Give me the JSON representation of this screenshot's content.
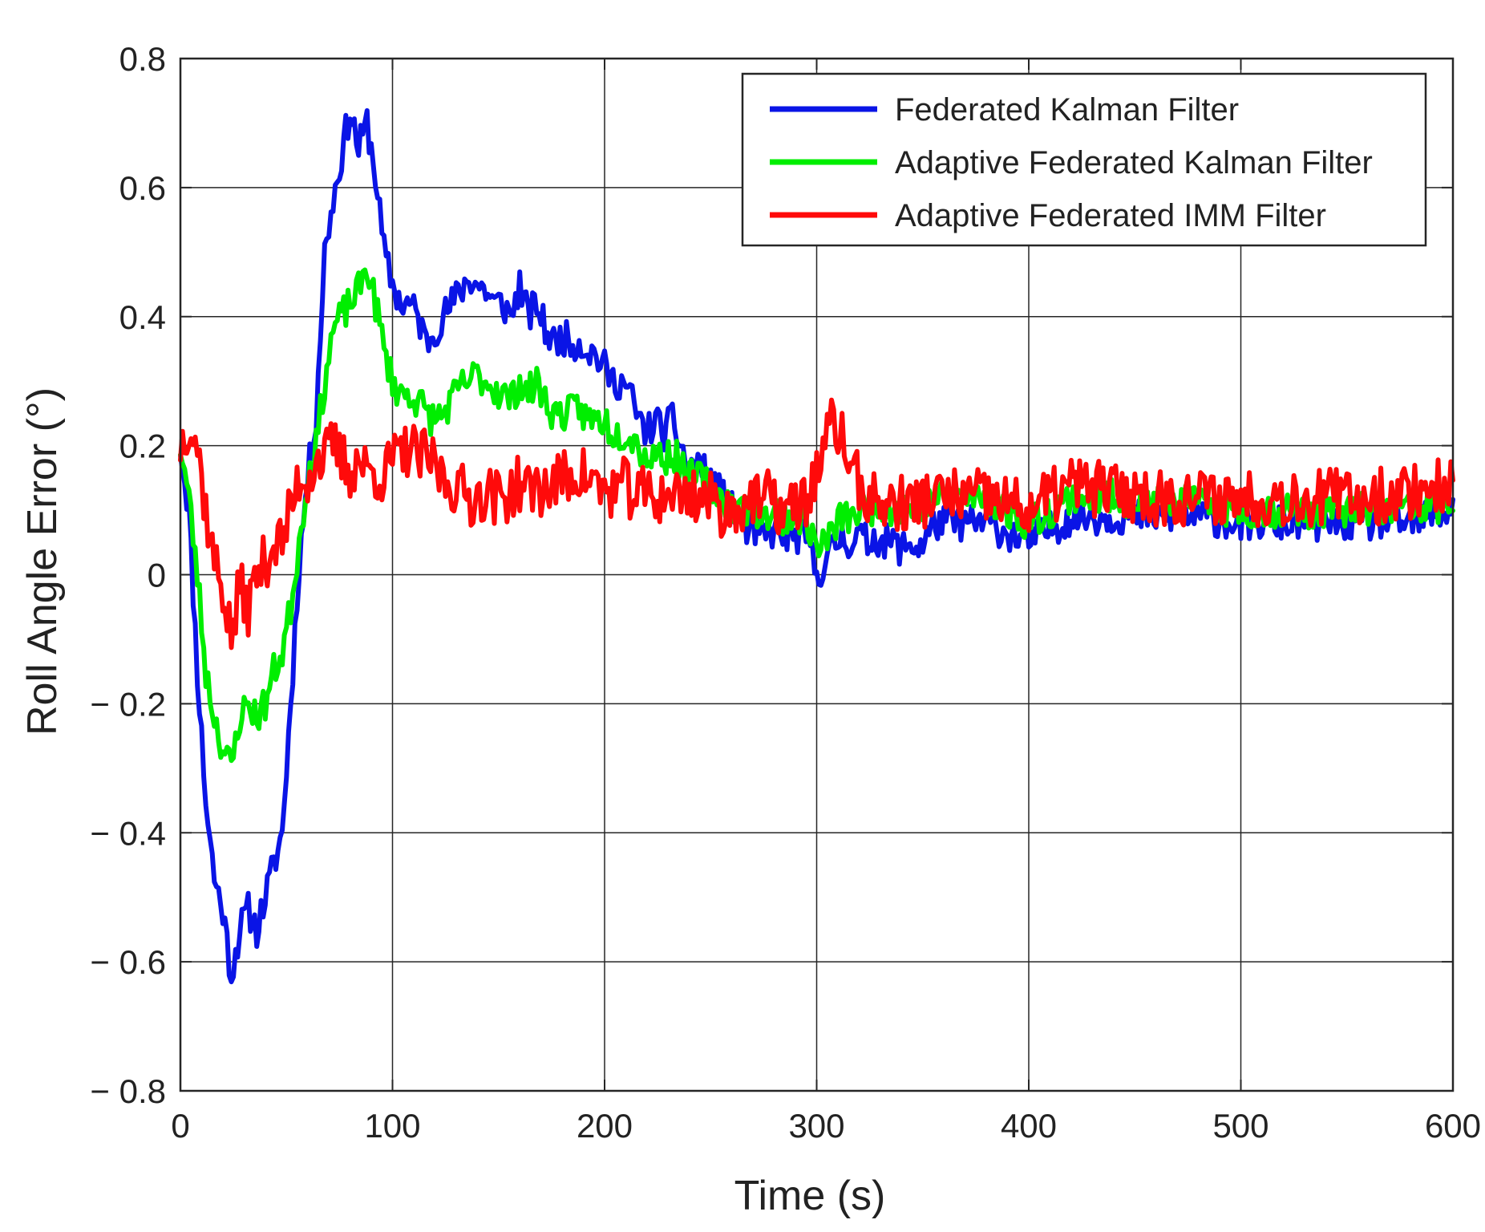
{
  "chart_data": {
    "type": "line",
    "title": "",
    "xlabel": "Time (s)",
    "ylabel": "Roll Angle Error (°)",
    "xlim": [
      0,
      600
    ],
    "ylim": [
      -0.8,
      0.8
    ],
    "xticks": [
      0,
      100,
      200,
      300,
      400,
      500,
      600
    ],
    "xtick_labels": [
      "0",
      "100",
      "200",
      "300",
      "400",
      "500",
      "600"
    ],
    "yticks": [
      -0.8,
      -0.6,
      -0.4,
      -0.2,
      0,
      0.2,
      0.4,
      0.6,
      0.8
    ],
    "ytick_labels": [
      "− 0.8",
      "− 0.6",
      "− 0.4",
      "− 0.2",
      "0",
      "0.2",
      "0.4",
      "0.6",
      "0.8"
    ],
    "grid": true,
    "legend_position": "top-right",
    "series": [
      {
        "name": "Federated Kalman Filter",
        "color": "#0a14e6",
        "anchors": [
          [
            0,
            0.2
          ],
          [
            4,
            0.1
          ],
          [
            8,
            -0.15
          ],
          [
            12,
            -0.35
          ],
          [
            16,
            -0.47
          ],
          [
            20,
            -0.52
          ],
          [
            24,
            -0.62
          ],
          [
            28,
            -0.55
          ],
          [
            32,
            -0.52
          ],
          [
            36,
            -0.55
          ],
          [
            40,
            -0.5
          ],
          [
            44,
            -0.45
          ],
          [
            48,
            -0.4
          ],
          [
            52,
            -0.2
          ],
          [
            56,
            0.02
          ],
          [
            60,
            0.15
          ],
          [
            64,
            0.25
          ],
          [
            68,
            0.5
          ],
          [
            72,
            0.58
          ],
          [
            76,
            0.65
          ],
          [
            80,
            0.72
          ],
          [
            84,
            0.66
          ],
          [
            88,
            0.7
          ],
          [
            92,
            0.62
          ],
          [
            96,
            0.5
          ],
          [
            100,
            0.45
          ],
          [
            104,
            0.42
          ],
          [
            108,
            0.42
          ],
          [
            112,
            0.4
          ],
          [
            116,
            0.36
          ],
          [
            120,
            0.38
          ],
          [
            124,
            0.4
          ],
          [
            128,
            0.42
          ],
          [
            132,
            0.44
          ],
          [
            136,
            0.46
          ],
          [
            140,
            0.45
          ],
          [
            144,
            0.44
          ],
          [
            148,
            0.42
          ],
          [
            152,
            0.42
          ],
          [
            156,
            0.4
          ],
          [
            160,
            0.45
          ],
          [
            164,
            0.4
          ],
          [
            168,
            0.42
          ],
          [
            172,
            0.38
          ],
          [
            176,
            0.36
          ],
          [
            180,
            0.37
          ],
          [
            184,
            0.36
          ],
          [
            188,
            0.36
          ],
          [
            192,
            0.35
          ],
          [
            196,
            0.34
          ],
          [
            200,
            0.32
          ],
          [
            204,
            0.3
          ],
          [
            208,
            0.3
          ],
          [
            212,
            0.28
          ],
          [
            216,
            0.24
          ],
          [
            220,
            0.22
          ],
          [
            224,
            0.24
          ],
          [
            228,
            0.22
          ],
          [
            232,
            0.24
          ],
          [
            236,
            0.2
          ],
          [
            240,
            0.16
          ],
          [
            244,
            0.18
          ],
          [
            248,
            0.15
          ],
          [
            252,
            0.14
          ],
          [
            256,
            0.12
          ],
          [
            260,
            0.1
          ],
          [
            264,
            0.08
          ],
          [
            268,
            0.07
          ],
          [
            272,
            0.06
          ],
          [
            276,
            0.06
          ],
          [
            280,
            0.07
          ],
          [
            284,
            0.06
          ],
          [
            288,
            0.06
          ],
          [
            292,
            0.06
          ],
          [
            296,
            0.05
          ],
          [
            300,
            0.0
          ],
          [
            304,
            0.02
          ],
          [
            308,
            0.04
          ],
          [
            312,
            0.06
          ],
          [
            316,
            0.05
          ],
          [
            320,
            0.06
          ],
          [
            324,
            0.05
          ],
          [
            328,
            0.06
          ],
          [
            332,
            0.05
          ],
          [
            336,
            0.05
          ],
          [
            340,
            0.04
          ],
          [
            344,
            0.05
          ],
          [
            348,
            0.04
          ],
          [
            352,
            0.06
          ],
          [
            356,
            0.08
          ],
          [
            360,
            0.08
          ],
          [
            380,
            0.08
          ],
          [
            400,
            0.05
          ],
          [
            420,
            0.09
          ],
          [
            440,
            0.09
          ],
          [
            460,
            0.09
          ],
          [
            480,
            0.09
          ],
          [
            500,
            0.08
          ],
          [
            520,
            0.08
          ],
          [
            540,
            0.08
          ],
          [
            560,
            0.08
          ],
          [
            580,
            0.08
          ],
          [
            600,
            0.1
          ]
        ],
        "noise": 0.028,
        "seed": 11
      },
      {
        "name": "Adaptive Federated Kalman Filter",
        "color": "#00ee00",
        "anchors": [
          [
            0,
            0.2
          ],
          [
            4,
            0.12
          ],
          [
            8,
            0.0
          ],
          [
            12,
            -0.15
          ],
          [
            16,
            -0.22
          ],
          [
            20,
            -0.27
          ],
          [
            24,
            -0.3
          ],
          [
            28,
            -0.22
          ],
          [
            32,
            -0.2
          ],
          [
            36,
            -0.22
          ],
          [
            40,
            -0.2
          ],
          [
            44,
            -0.15
          ],
          [
            48,
            -0.12
          ],
          [
            52,
            -0.05
          ],
          [
            56,
            0.05
          ],
          [
            60,
            0.15
          ],
          [
            64,
            0.2
          ],
          [
            68,
            0.3
          ],
          [
            72,
            0.38
          ],
          [
            76,
            0.4
          ],
          [
            80,
            0.42
          ],
          [
            84,
            0.44
          ],
          [
            88,
            0.48
          ],
          [
            92,
            0.42
          ],
          [
            96,
            0.35
          ],
          [
            100,
            0.3
          ],
          [
            104,
            0.28
          ],
          [
            108,
            0.28
          ],
          [
            112,
            0.27
          ],
          [
            116,
            0.25
          ],
          [
            120,
            0.24
          ],
          [
            124,
            0.25
          ],
          [
            128,
            0.27
          ],
          [
            132,
            0.29
          ],
          [
            136,
            0.3
          ],
          [
            140,
            0.31
          ],
          [
            144,
            0.3
          ],
          [
            148,
            0.29
          ],
          [
            152,
            0.28
          ],
          [
            156,
            0.27
          ],
          [
            160,
            0.3
          ],
          [
            164,
            0.28
          ],
          [
            168,
            0.3
          ],
          [
            172,
            0.27
          ],
          [
            176,
            0.25
          ],
          [
            180,
            0.25
          ],
          [
            184,
            0.25
          ],
          [
            188,
            0.26
          ],
          [
            192,
            0.24
          ],
          [
            196,
            0.24
          ],
          [
            200,
            0.24
          ],
          [
            204,
            0.22
          ],
          [
            208,
            0.22
          ],
          [
            212,
            0.22
          ],
          [
            216,
            0.2
          ],
          [
            220,
            0.18
          ],
          [
            224,
            0.19
          ],
          [
            228,
            0.18
          ],
          [
            232,
            0.19
          ],
          [
            236,
            0.17
          ],
          [
            240,
            0.15
          ],
          [
            244,
            0.15
          ],
          [
            248,
            0.14
          ],
          [
            252,
            0.13
          ],
          [
            256,
            0.12
          ],
          [
            260,
            0.11
          ],
          [
            264,
            0.1
          ],
          [
            268,
            0.1
          ],
          [
            272,
            0.1
          ],
          [
            276,
            0.09
          ],
          [
            280,
            0.1
          ],
          [
            284,
            0.09
          ],
          [
            288,
            0.09
          ],
          [
            292,
            0.09
          ],
          [
            296,
            0.08
          ],
          [
            300,
            0.04
          ],
          [
            304,
            0.05
          ],
          [
            308,
            0.07
          ],
          [
            312,
            0.09
          ],
          [
            316,
            0.09
          ],
          [
            320,
            0.1
          ],
          [
            324,
            0.1
          ],
          [
            328,
            0.11
          ],
          [
            332,
            0.11
          ],
          [
            336,
            0.1
          ],
          [
            340,
            0.11
          ],
          [
            344,
            0.1
          ],
          [
            348,
            0.11
          ],
          [
            352,
            0.11
          ],
          [
            356,
            0.12
          ],
          [
            360,
            0.12
          ],
          [
            380,
            0.12
          ],
          [
            400,
            0.08
          ],
          [
            420,
            0.12
          ],
          [
            440,
            0.12
          ],
          [
            460,
            0.11
          ],
          [
            480,
            0.11
          ],
          [
            500,
            0.1
          ],
          [
            520,
            0.1
          ],
          [
            540,
            0.1
          ],
          [
            560,
            0.1
          ],
          [
            580,
            0.1
          ],
          [
            600,
            0.11
          ]
        ],
        "noise": 0.028,
        "seed": 23
      },
      {
        "name": "Adaptive Federated IMM Filter",
        "color": "#ff0a0a",
        "anchors": [
          [
            0,
            0.2
          ],
          [
            4,
            0.24
          ],
          [
            8,
            0.2
          ],
          [
            12,
            0.1
          ],
          [
            16,
            0.02
          ],
          [
            20,
            -0.02
          ],
          [
            24,
            -0.1
          ],
          [
            28,
            -0.02
          ],
          [
            32,
            -0.05
          ],
          [
            36,
            0.0
          ],
          [
            40,
            0.02
          ],
          [
            44,
            0.05
          ],
          [
            48,
            0.05
          ],
          [
            52,
            0.1
          ],
          [
            56,
            0.15
          ],
          [
            60,
            0.15
          ],
          [
            64,
            0.18
          ],
          [
            68,
            0.18
          ],
          [
            72,
            0.2
          ],
          [
            76,
            0.18
          ],
          [
            80,
            0.16
          ],
          [
            84,
            0.18
          ],
          [
            88,
            0.16
          ],
          [
            92,
            0.16
          ],
          [
            96,
            0.15
          ],
          [
            100,
            0.18
          ],
          [
            104,
            0.18
          ],
          [
            108,
            0.2
          ],
          [
            112,
            0.18
          ],
          [
            116,
            0.18
          ],
          [
            120,
            0.17
          ],
          [
            124,
            0.15
          ],
          [
            128,
            0.14
          ],
          [
            132,
            0.13
          ],
          [
            136,
            0.12
          ],
          [
            140,
            0.12
          ],
          [
            144,
            0.13
          ],
          [
            148,
            0.12
          ],
          [
            152,
            0.12
          ],
          [
            156,
            0.13
          ],
          [
            160,
            0.14
          ],
          [
            164,
            0.13
          ],
          [
            168,
            0.14
          ],
          [
            172,
            0.13
          ],
          [
            176,
            0.14
          ],
          [
            180,
            0.15
          ],
          [
            184,
            0.15
          ],
          [
            188,
            0.16
          ],
          [
            192,
            0.15
          ],
          [
            196,
            0.14
          ],
          [
            200,
            0.13
          ],
          [
            204,
            0.13
          ],
          [
            208,
            0.14
          ],
          [
            212,
            0.13
          ],
          [
            216,
            0.12
          ],
          [
            220,
            0.13
          ],
          [
            224,
            0.12
          ],
          [
            228,
            0.12
          ],
          [
            232,
            0.13
          ],
          [
            236,
            0.12
          ],
          [
            240,
            0.13
          ],
          [
            244,
            0.12
          ],
          [
            248,
            0.12
          ],
          [
            252,
            0.11
          ],
          [
            256,
            0.1
          ],
          [
            260,
            0.1
          ],
          [
            264,
            0.11
          ],
          [
            268,
            0.12
          ],
          [
            272,
            0.11
          ],
          [
            276,
            0.12
          ],
          [
            280,
            0.11
          ],
          [
            284,
            0.1
          ],
          [
            288,
            0.1
          ],
          [
            292,
            0.11
          ],
          [
            296,
            0.12
          ],
          [
            300,
            0.16
          ],
          [
            304,
            0.2
          ],
          [
            308,
            0.24
          ],
          [
            312,
            0.21
          ],
          [
            316,
            0.17
          ],
          [
            320,
            0.14
          ],
          [
            324,
            0.12
          ],
          [
            328,
            0.11
          ],
          [
            332,
            0.11
          ],
          [
            336,
            0.11
          ],
          [
            340,
            0.11
          ],
          [
            344,
            0.11
          ],
          [
            348,
            0.11
          ],
          [
            352,
            0.12
          ],
          [
            356,
            0.12
          ],
          [
            360,
            0.12
          ],
          [
            380,
            0.12
          ],
          [
            400,
            0.1
          ],
          [
            420,
            0.14
          ],
          [
            440,
            0.13
          ],
          [
            460,
            0.12
          ],
          [
            480,
            0.12
          ],
          [
            500,
            0.12
          ],
          [
            520,
            0.12
          ],
          [
            540,
            0.12
          ],
          [
            560,
            0.12
          ],
          [
            580,
            0.13
          ],
          [
            600,
            0.14
          ]
        ],
        "noise": 0.045,
        "seed": 37
      }
    ]
  }
}
